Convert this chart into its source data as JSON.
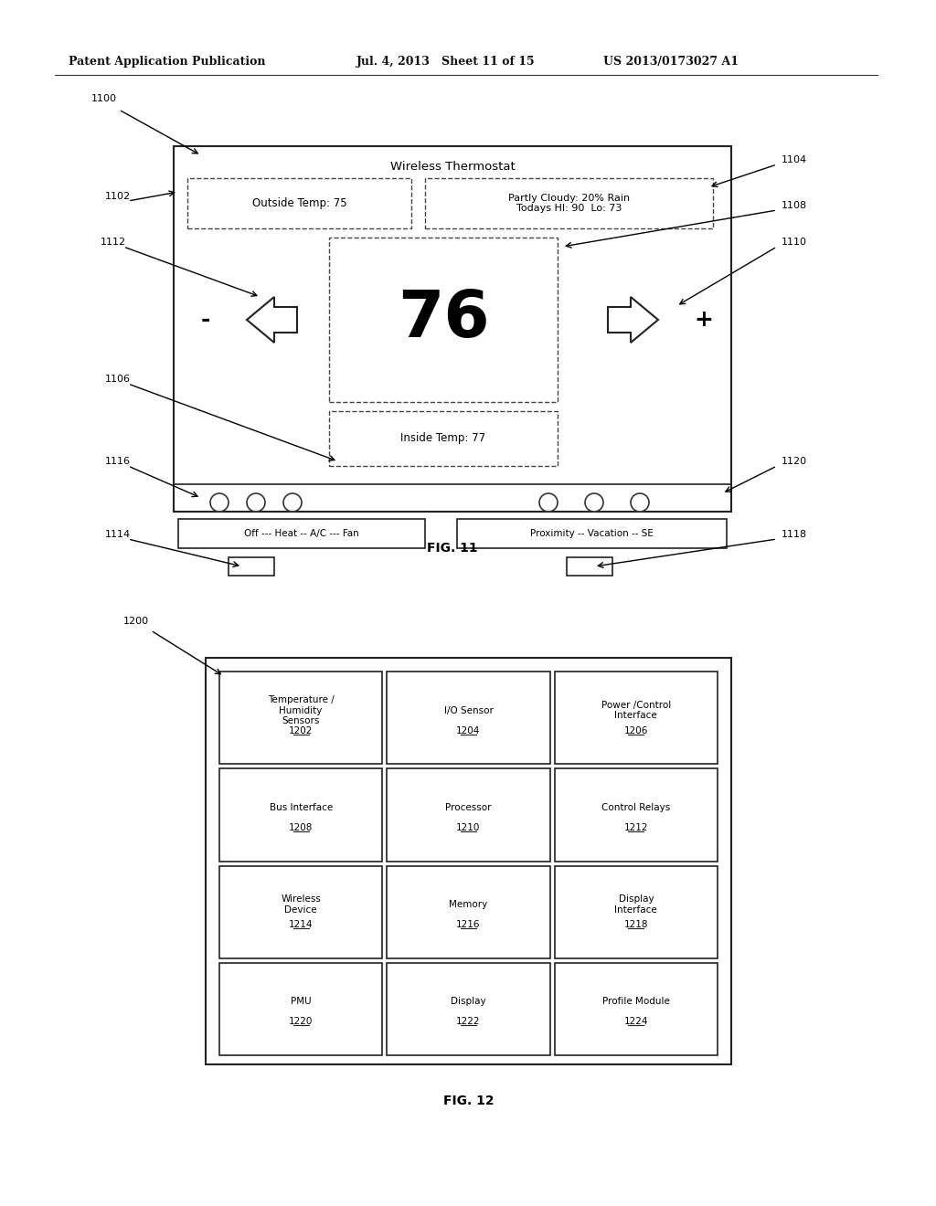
{
  "bg_color": "#ffffff",
  "header_left": "Patent Application Publication",
  "header_mid": "Jul. 4, 2013   Sheet 11 of 15",
  "header_right": "US 2013/0173027 A1",
  "fig11_label": "FIG. 11",
  "fig12_label": "FIG. 12",
  "fig11": {
    "title": "Wireless Thermostat",
    "outside_temp": "Outside Temp: 75",
    "weather": "Partly Cloudy: 20% Rain\nTodays HI: 90  Lo: 73",
    "temp_value": "76",
    "inside_temp": "Inside Temp: 77",
    "left_button": "Off --- Heat -- A/C --- Fan",
    "right_button": "Proximity -- Vacation -- SE"
  },
  "fig12": {
    "boxes": [
      {
        "label": "Temperature /\nHumidity\nSensors",
        "num": "1202",
        "row": 0,
        "col": 0
      },
      {
        "label": "I/O Sensor",
        "num": "1204",
        "row": 0,
        "col": 1
      },
      {
        "label": "Power /Control\nInterface",
        "num": "1206",
        "row": 0,
        "col": 2
      },
      {
        "label": "Bus Interface",
        "num": "1208",
        "row": 1,
        "col": 0
      },
      {
        "label": "Processor",
        "num": "1210",
        "row": 1,
        "col": 1
      },
      {
        "label": "Control Relays",
        "num": "1212",
        "row": 1,
        "col": 2
      },
      {
        "label": "Wireless\nDevice",
        "num": "1214",
        "row": 2,
        "col": 0
      },
      {
        "label": "Memory",
        "num": "1216",
        "row": 2,
        "col": 1
      },
      {
        "label": "Display\nInterface",
        "num": "1218",
        "row": 2,
        "col": 2
      },
      {
        "label": "PMU",
        "num": "1220",
        "row": 3,
        "col": 0
      },
      {
        "label": "Display",
        "num": "1222",
        "row": 3,
        "col": 1
      },
      {
        "label": "Profile Module",
        "num": "1224",
        "row": 3,
        "col": 2
      }
    ]
  }
}
